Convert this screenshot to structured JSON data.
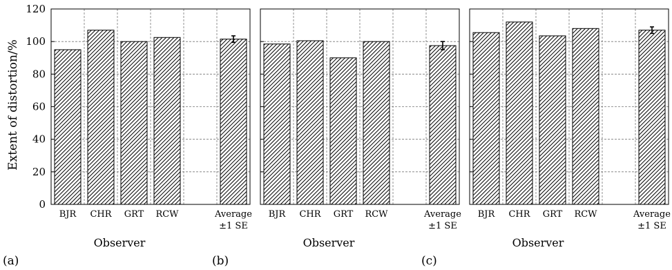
{
  "ylabel": "Extent of distortion/%",
  "xlabel": "Observer",
  "y_ticks": [
    "0",
    "20",
    "40",
    "60",
    "80",
    "100",
    "120"
  ],
  "category_labels": [
    [
      "BJR"
    ],
    [
      "CHR"
    ],
    [
      "GRT"
    ],
    [
      "RCW"
    ],
    [
      "Average",
      "±1  SE"
    ]
  ],
  "colors": {
    "axis": "#000000",
    "grid": "#777777",
    "bar_fill": "#ffffff",
    "hatch": "#000000"
  },
  "chart_data": [
    {
      "type": "bar",
      "panel_label": "(a)",
      "categories": [
        "BJR",
        "CHR",
        "GRT",
        "RCW",
        "",
        "Average ±1 SE"
      ],
      "values": [
        95,
        107,
        100,
        102.5,
        null,
        101.5
      ],
      "error": [
        null,
        null,
        null,
        null,
        null,
        2
      ],
      "xlabel": "Observer",
      "ylabel": "Extent of distortion/%",
      "ylim": [
        0,
        120
      ],
      "grid": true
    },
    {
      "type": "bar",
      "panel_label": "(b)",
      "categories": [
        "BJR",
        "CHR",
        "GRT",
        "RCW",
        "",
        "Average ±1 SE"
      ],
      "values": [
        98.5,
        100.5,
        90,
        100,
        null,
        97.5
      ],
      "error": [
        null,
        null,
        null,
        null,
        null,
        2.5
      ],
      "xlabel": "Observer",
      "ylabel": "",
      "ylim": [
        0,
        120
      ],
      "grid": true
    },
    {
      "type": "bar",
      "panel_label": "(c)",
      "categories": [
        "BJR",
        "CHR",
        "GRT",
        "RCW",
        "",
        "Average ±1 SE"
      ],
      "values": [
        105.5,
        112,
        103.5,
        108,
        null,
        107
      ],
      "error": [
        null,
        null,
        null,
        null,
        null,
        2
      ],
      "xlabel": "Observer",
      "ylabel": "",
      "ylim": [
        0,
        120
      ],
      "grid": true
    }
  ]
}
